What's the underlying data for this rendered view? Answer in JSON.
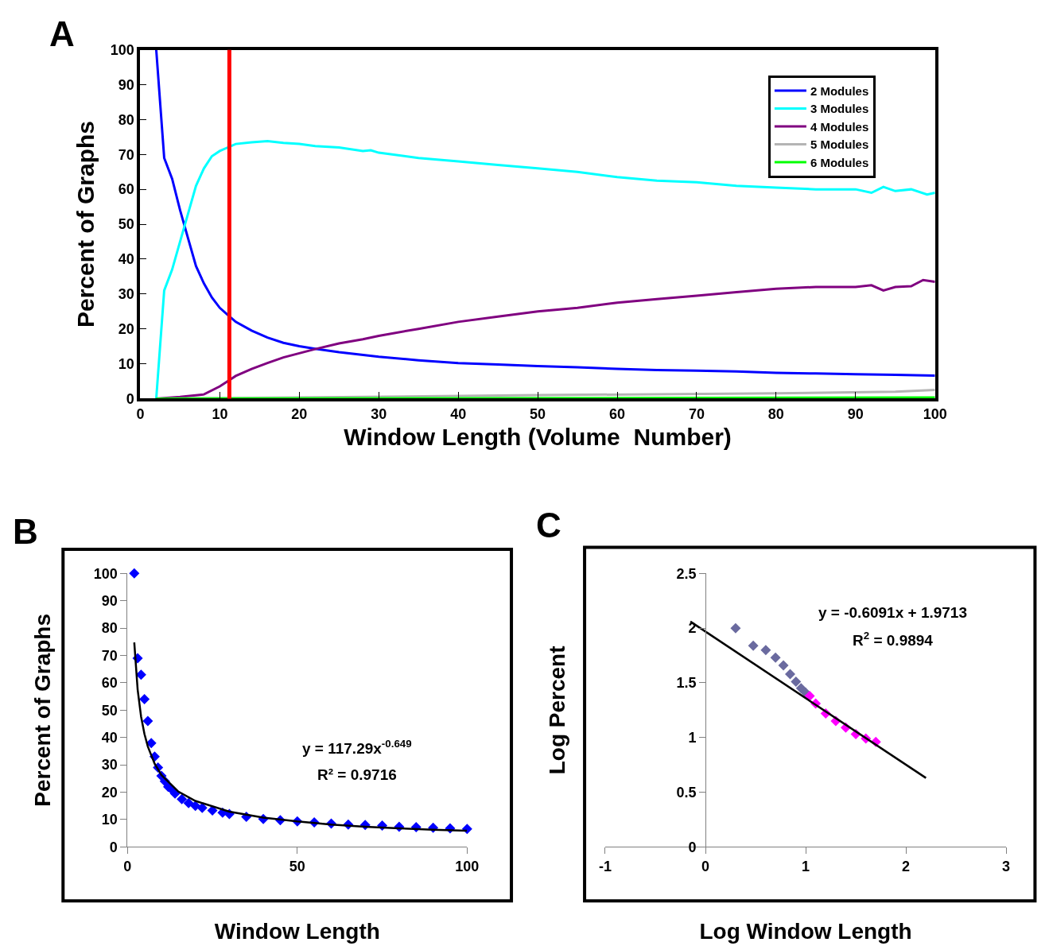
{
  "chart_data": [
    {
      "type": "line",
      "title": "A",
      "xlabel": "Window Length (Volume  Number)",
      "ylabel": "Percent of Graphs",
      "xlim": [
        0,
        100
      ],
      "ylim": [
        0,
        100
      ],
      "xticks": [
        0,
        10,
        20,
        30,
        40,
        50,
        60,
        70,
        80,
        90,
        100
      ],
      "yticks": [
        0,
        10,
        20,
        30,
        40,
        50,
        60,
        70,
        80,
        90,
        100
      ],
      "grid": false,
      "legend": "top right",
      "line_style": "solid",
      "ref_lines": [
        {
          "axis": "x",
          "value": 11.2,
          "color": "#ff0000"
        }
      ],
      "series": [
        {
          "name": "2 Modules",
          "color": "#0000ff",
          "x": [
            2,
            3,
            4,
            5,
            6,
            7,
            8,
            9,
            10,
            11,
            12,
            14,
            16,
            18,
            20,
            22,
            25,
            30,
            35,
            40,
            45,
            50,
            55,
            60,
            65,
            70,
            75,
            80,
            85,
            90,
            95,
            100
          ],
          "values": [
            100,
            69,
            63,
            54,
            46,
            38,
            33,
            29,
            26,
            24,
            22,
            19.5,
            17.5,
            16,
            15,
            14.3,
            13.3,
            12,
            11,
            10.2,
            9.8,
            9.3,
            9,
            8.5,
            8.2,
            8,
            7.8,
            7.4,
            7.2,
            7,
            6.8,
            6.6
          ]
        },
        {
          "name": "3 Modules",
          "color": "#00ffff",
          "x": [
            2,
            3,
            4,
            5,
            6,
            7,
            8,
            9,
            10,
            11,
            12,
            14,
            16,
            18,
            20,
            22,
            25,
            28,
            29,
            30,
            35,
            40,
            45,
            50,
            55,
            60,
            65,
            70,
            75,
            80,
            85,
            90,
            92,
            93.5,
            95,
            97,
            99,
            100
          ],
          "values": [
            0,
            31,
            37,
            45,
            53,
            61,
            66,
            69.5,
            71,
            72,
            73,
            73.5,
            73.8,
            73.3,
            73,
            72.4,
            72,
            71,
            71.2,
            70.5,
            69,
            68,
            67,
            66,
            65,
            63.5,
            62.5,
            62,
            61,
            60.5,
            60,
            60,
            59,
            60.7,
            59.5,
            60,
            58.5,
            59
          ]
        },
        {
          "name": "4 Modules",
          "color": "#800080",
          "x": [
            2,
            5,
            8,
            10,
            11,
            12,
            14,
            16,
            18,
            20,
            22,
            25,
            28,
            30,
            35,
            40,
            45,
            50,
            55,
            60,
            65,
            70,
            75,
            80,
            85,
            90,
            92,
            93.5,
            95,
            97,
            98.5,
            100
          ],
          "values": [
            0,
            0.5,
            1.2,
            3.5,
            5,
            6.5,
            8.5,
            10.2,
            11.8,
            13,
            14.2,
            15.8,
            17,
            18,
            20,
            22,
            23.5,
            25,
            26,
            27.5,
            28.5,
            29.5,
            30.5,
            31.5,
            32,
            32,
            32.5,
            31,
            32,
            32.2,
            34,
            33.5
          ]
        },
        {
          "name": "5 Modules",
          "color": "#b4b4b4",
          "x": [
            2,
            20,
            50,
            80,
            95,
            100
          ],
          "values": [
            0,
            0.3,
            1,
            1.5,
            2,
            2.5
          ]
        },
        {
          "name": "6 Modules",
          "color": "#00ff00",
          "x": [
            2,
            100
          ],
          "values": [
            0,
            0.3
          ]
        }
      ]
    },
    {
      "type": "scatter",
      "title": "B",
      "xlabel": "Window Length",
      "ylabel": "Percent of Graphs",
      "xlim": [
        0,
        100
      ],
      "ylim": [
        0,
        100
      ],
      "xticks": [
        0,
        50,
        100
      ],
      "yticks": [
        0,
        10,
        20,
        30,
        40,
        50,
        60,
        70,
        80,
        90,
        100
      ],
      "grid": false,
      "legend": false,
      "annotations": [
        "y = 117.29x$^{-0.649}$",
        "R² = 0.9716"
      ],
      "series": [
        {
          "marker": "diamond",
          "color": "#0000ff",
          "x": [
            2,
            3,
            4,
            5,
            6,
            7,
            8,
            9,
            10,
            11,
            12,
            13,
            14,
            16,
            18,
            20,
            22,
            25,
            28,
            30,
            35,
            40,
            45,
            50,
            55,
            60,
            65,
            70,
            75,
            80,
            85,
            90,
            95,
            100
          ],
          "values": [
            100,
            69,
            63,
            54,
            46,
            38,
            33,
            29,
            26,
            24,
            22,
            21,
            19.5,
            17.5,
            16,
            15,
            14.3,
            13.3,
            12.5,
            12,
            11,
            10.2,
            9.8,
            9.3,
            9,
            8.5,
            8.2,
            8,
            7.8,
            7.4,
            7.2,
            7,
            6.8,
            6.6
          ]
        },
        {
          "type": "line",
          "color": "#000000",
          "x": [
            2,
            3,
            4,
            5,
            6,
            8,
            10,
            15,
            20,
            30,
            40,
            50,
            60,
            70,
            80,
            90,
            100
          ],
          "values": [
            74.8,
            57.5,
            47.7,
            41.3,
            36.7,
            30.4,
            26.3,
            20.2,
            16.8,
            12.9,
            10.7,
            9.3,
            8.2,
            7.4,
            6.8,
            6.3,
            5.9
          ]
        }
      ]
    },
    {
      "type": "scatter",
      "title": "C",
      "xlabel": "Log Window Length",
      "ylabel": "Log Percent",
      "xlim": [
        -1,
        3
      ],
      "ylim": [
        0,
        2.5
      ],
      "xticks": [
        -1,
        0,
        1,
        2,
        3
      ],
      "yticks": [
        0,
        0.5,
        1,
        1.5,
        2,
        2.5
      ],
      "grid": false,
      "legend": false,
      "annotations": [
        "y = -0.6091x + 1.9713",
        "R$^{2}$ = 0.9894"
      ],
      "series": [
        {
          "marker": "diamond",
          "color": "#6a6a9f",
          "x": [
            0.301,
            0.477,
            0.602,
            0.699,
            0.778,
            0.845,
            0.903,
            0.954,
            1.0
          ],
          "values": [
            2.0,
            1.84,
            1.8,
            1.73,
            1.66,
            1.58,
            1.51,
            1.45,
            1.41
          ]
        },
        {
          "marker": "diamond",
          "color": "#ff00ff",
          "x": [
            1.04,
            1.1,
            1.2,
            1.3,
            1.4,
            1.5,
            1.6,
            1.7
          ],
          "values": [
            1.38,
            1.31,
            1.22,
            1.15,
            1.09,
            1.03,
            0.99,
            0.96
          ]
        },
        {
          "type": "line",
          "color": "#000000",
          "x": [
            -0.15,
            2.2
          ],
          "values": [
            2.06,
            0.63
          ]
        }
      ]
    }
  ]
}
